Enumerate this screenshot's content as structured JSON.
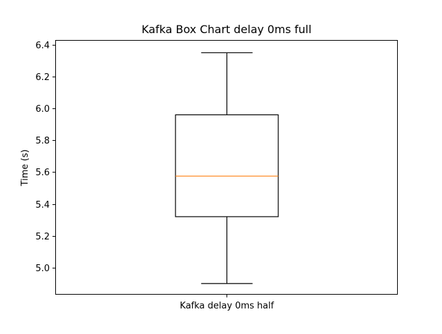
{
  "chart_data": {
    "type": "box",
    "title": "Kafka Box Chart delay 0ms full",
    "xlabel": "",
    "ylabel": "Time (s)",
    "categories": [
      "Kafka delay 0ms half"
    ],
    "boxes": [
      {
        "category": "Kafka delay 0ms half",
        "whisker_low": 4.9,
        "q1": 5.32,
        "median": 5.575,
        "q3": 5.96,
        "whisker_high": 6.35
      }
    ],
    "yticks": [
      5.0,
      5.2,
      5.4,
      5.6,
      5.8,
      6.0,
      6.2,
      6.4
    ],
    "ytick_labels": [
      "5.0",
      "5.2",
      "5.4",
      "5.6",
      "5.8",
      "6.0",
      "6.2",
      "6.4"
    ],
    "ylim": [
      4.83,
      6.43
    ],
    "grid": false,
    "legend": "none",
    "colors": {
      "box": "#000000",
      "median": "#ff7f0e",
      "axes": "#000000",
      "background": "#ffffff"
    }
  }
}
